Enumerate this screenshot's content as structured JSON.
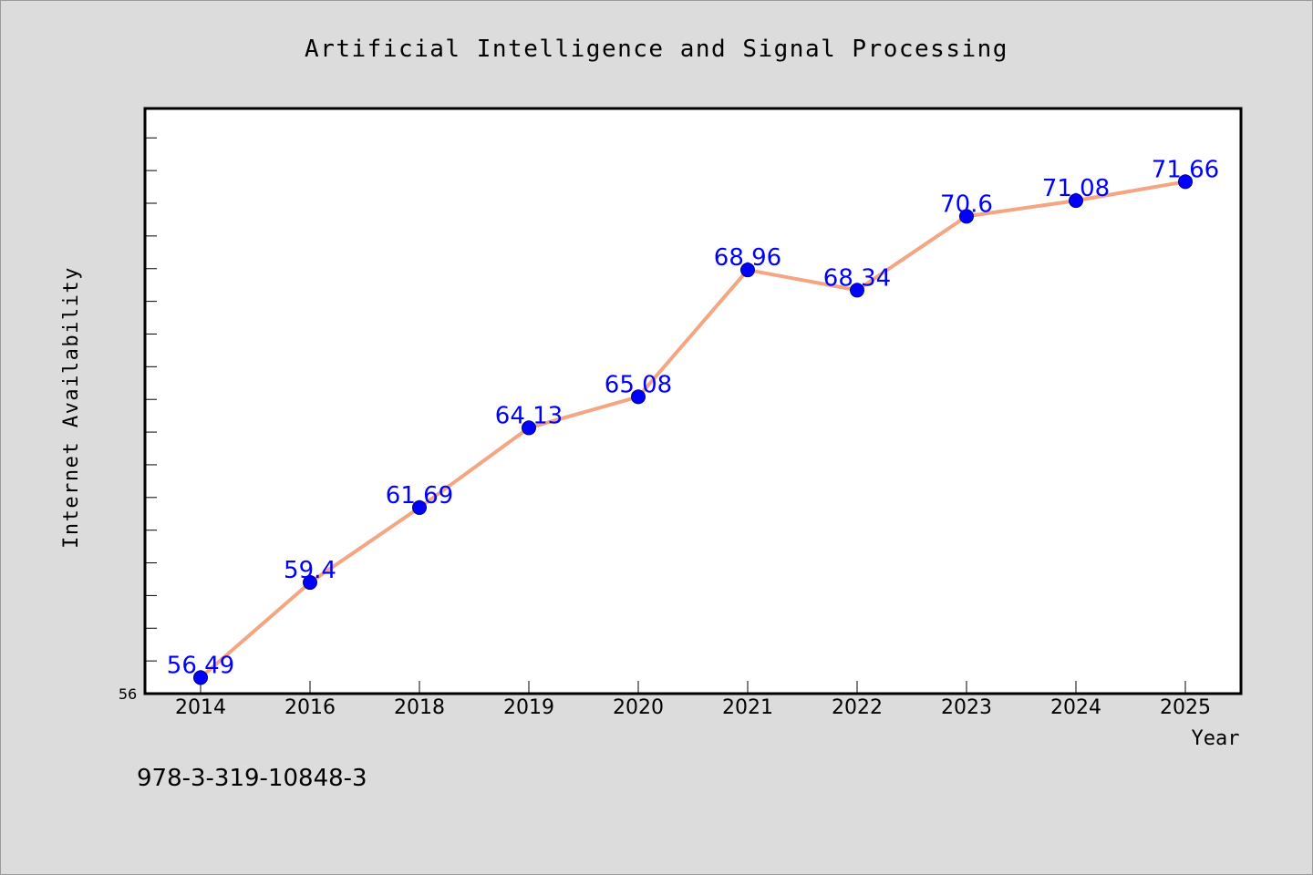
{
  "chart_data": {
    "type": "line",
    "title": "Artificial Intelligence and Signal Processing",
    "xlabel": "Year",
    "ylabel": "Internet Availability",
    "categories": [
      "2014",
      "2016",
      "2018",
      "2019",
      "2020",
      "2021",
      "2022",
      "2023",
      "2024",
      "2025"
    ],
    "values": [
      56.49,
      59.4,
      61.69,
      64.13,
      65.08,
      68.96,
      68.34,
      70.6,
      71.08,
      71.66
    ],
    "data_labels": [
      "56.49",
      "59.4",
      "61.69",
      "64.13",
      "65.08",
      "68.96",
      "68.34",
      "70.6",
      "71.08",
      "71.66"
    ],
    "ylim": [
      56,
      73.9
    ],
    "y_tick_labels": [
      "56"
    ],
    "grid": false,
    "legend": "none",
    "colors": {
      "line": "#f4a582",
      "marker": "#0000ff",
      "data_label": "#0000ff",
      "plot_background": "#ffffff",
      "figure_background": "#dcdcdc"
    }
  },
  "footer": {
    "isbn": "978-3-319-10848-3"
  }
}
